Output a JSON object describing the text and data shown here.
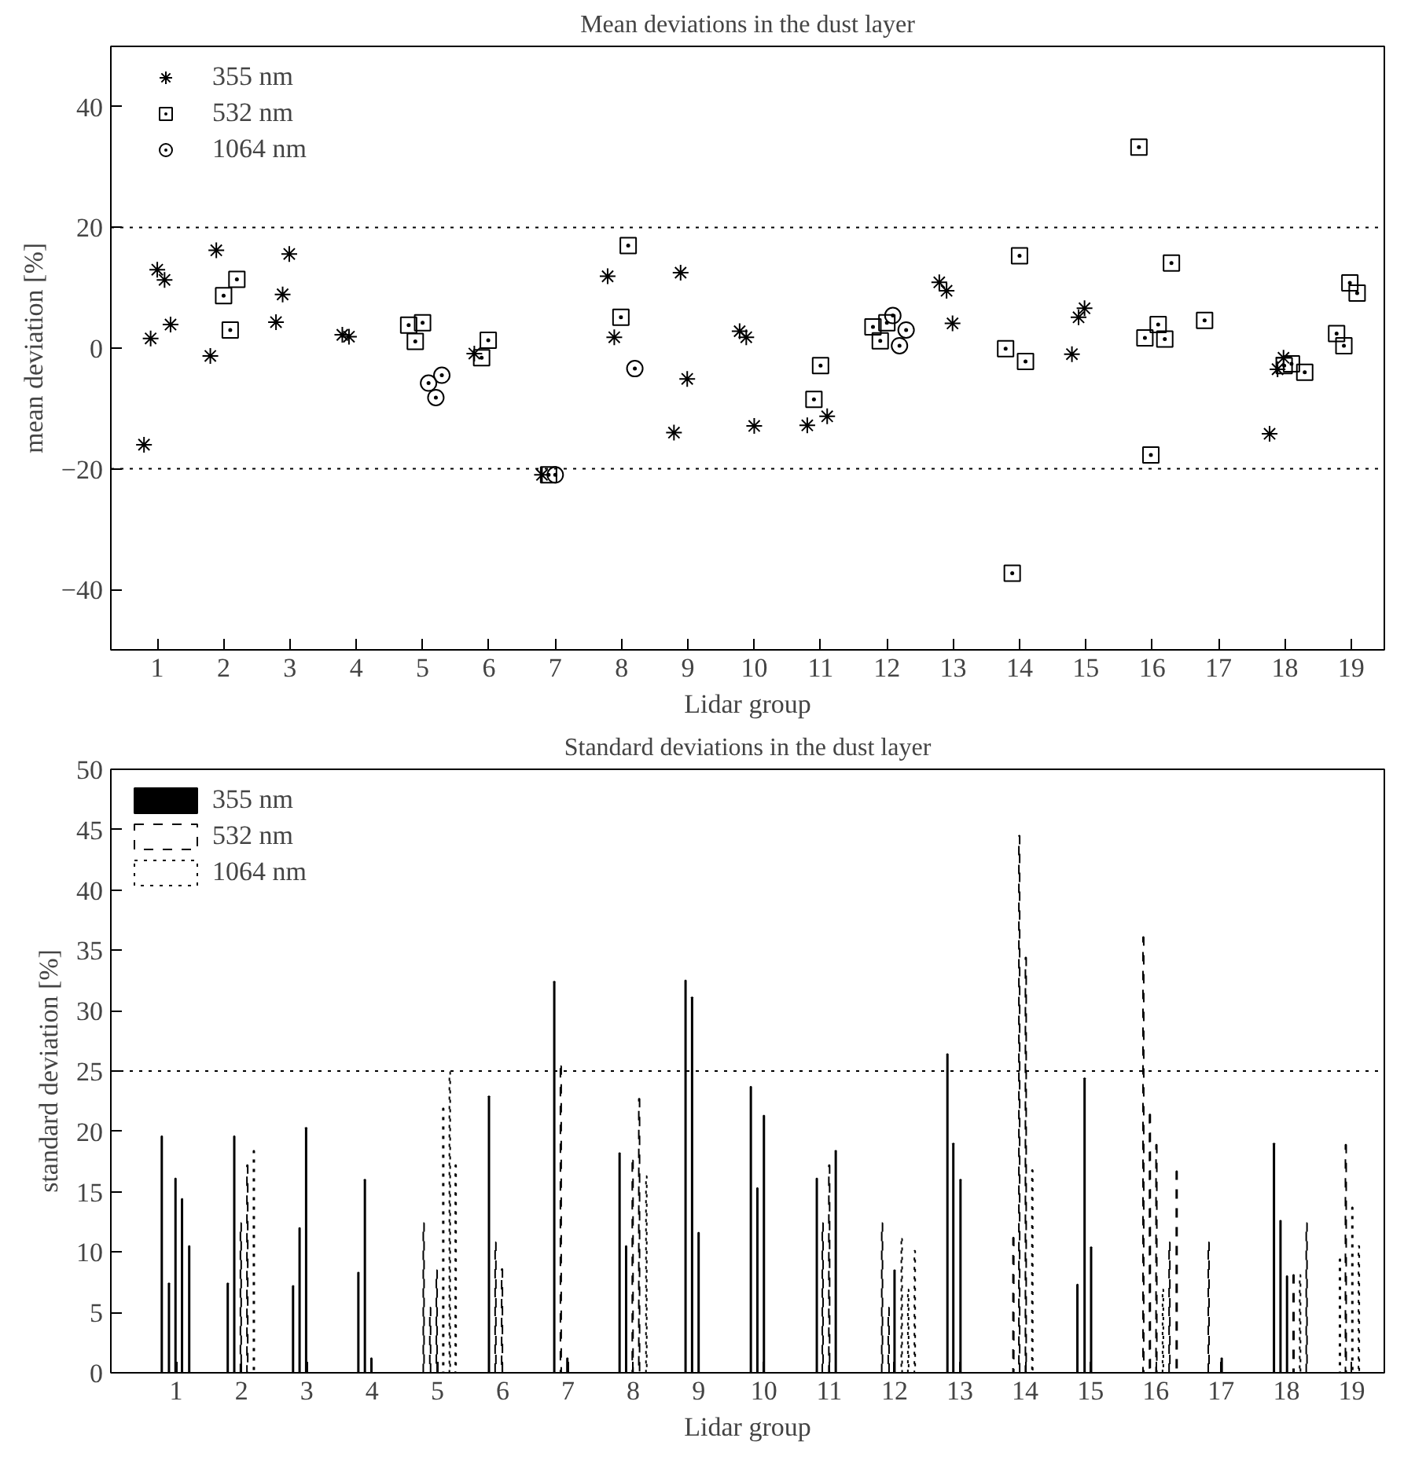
{
  "chart_data": [
    {
      "type": "scatter",
      "title": "Mean deviations in the dust layer",
      "xlabel": "Lidar group",
      "ylabel": "mean deviation [%]",
      "xlim": [
        0.3,
        19.5
      ],
      "xticks": [
        1,
        2,
        3,
        4,
        5,
        6,
        7,
        8,
        9,
        10,
        11,
        12,
        13,
        14,
        15,
        16,
        17,
        18,
        19
      ],
      "ylim": [
        -50,
        50
      ],
      "yticks": [
        -40,
        -20,
        0,
        20,
        40
      ],
      "grid": false,
      "legend": "top left",
      "ref_lines": [
        {
          "axis": "y",
          "value": 20,
          "line_style": "dotted",
          "color": "#000000"
        },
        {
          "axis": "y",
          "value": -20,
          "line_style": "dotted",
          "color": "#000000"
        }
      ],
      "series": [
        {
          "name": "355 nm",
          "color": "#000000",
          "marker": "cross",
          "x": [
            0.8,
            0.9,
            1.0,
            1.11,
            1.2,
            1.8,
            1.89,
            2.79,
            2.89,
            2.99,
            3.79,
            3.89,
            5.78,
            6.8,
            7.79,
            7.89,
            8.79,
            8.89,
            8.99,
            9.78,
            9.88,
            10.0,
            10.8,
            11.1,
            12.79,
            12.9,
            12.99,
            14.79,
            14.89,
            14.98,
            17.77,
            17.89,
            17.98
          ],
          "values": [
            -16.0,
            1.6,
            13.0,
            11.3,
            3.9,
            -1.3,
            16.2,
            4.3,
            8.9,
            15.6,
            2.2,
            1.9,
            -0.9,
            -21,
            11.9,
            1.8,
            -14.0,
            12.5,
            -5.1,
            2.8,
            1.8,
            -12.9,
            -12.8,
            -11.3,
            10.9,
            9.5,
            4.1,
            -1.0,
            5.1,
            6.6,
            -14.2,
            -3.5,
            -1.6
          ]
        },
        {
          "name": "532 nm",
          "color": "#000000",
          "marker": "square",
          "x": [
            2.0,
            2.1,
            2.2,
            4.79,
            4.89,
            5.0,
            5.89,
            5.99,
            6.9,
            7.99,
            8.1,
            10.9,
            11.0,
            11.79,
            11.9,
            12.0,
            13.79,
            13.89,
            14.0,
            14.09,
            15.8,
            15.89,
            15.98,
            16.09,
            16.19,
            16.29,
            16.79,
            17.99,
            18.1,
            18.3,
            18.78,
            18.89,
            18.98,
            19.09
          ],
          "values": [
            8.7,
            3.0,
            11.4,
            3.8,
            1.1,
            4.2,
            -1.6,
            1.3,
            -21,
            5.1,
            17.0,
            -8.5,
            -2.9,
            3.5,
            1.2,
            4.2,
            -0.1,
            -37.3,
            15.3,
            -2.2,
            33.3,
            1.7,
            -17.7,
            3.9,
            1.5,
            14.1,
            4.6,
            -2.9,
            -2.6,
            -4.0,
            2.4,
            0.4,
            10.8,
            9.1
          ]
        },
        {
          "name": "1064 nm",
          "color": "#000000",
          "marker": "circle",
          "x": [
            5.09,
            5.2,
            5.29,
            7.0,
            8.2,
            12.09,
            12.19,
            12.29
          ],
          "values": [
            -5.8,
            -8.2,
            -4.5,
            -21,
            -3.4,
            5.4,
            0.4,
            3.0
          ]
        }
      ]
    },
    {
      "type": "bar",
      "title": "Standard deviations in the dust layer",
      "xlabel": "Lidar group",
      "ylabel": "standard deviation [%]",
      "xlim": [
        0,
        19.5
      ],
      "xticks": [
        1,
        2,
        3,
        4,
        5,
        6,
        7,
        8,
        9,
        10,
        11,
        12,
        13,
        14,
        15,
        16,
        17,
        18,
        19
      ],
      "ylim": [
        0,
        50
      ],
      "yticks": [
        0,
        5,
        10,
        15,
        20,
        25,
        30,
        35,
        40,
        45,
        50
      ],
      "grid": false,
      "legend": "top left",
      "ref_lines": [
        {
          "axis": "y",
          "value": 25,
          "line_style": "dotted",
          "color": "#000000"
        }
      ],
      "series": [
        {
          "name": "355 nm",
          "color": "#000000",
          "line_style": "solid",
          "x": [
            0.78,
            0.89,
            0.99,
            1.09,
            1.2,
            1.79,
            1.89,
            2.79,
            2.89,
            2.99,
            3.79,
            3.89,
            3.99,
            5.79,
            6.79,
            6.99,
            7.79,
            7.89,
            8.8,
            8.9,
            9.0,
            9.8,
            9.9,
            10.0,
            10.81,
            11.1,
            12.0,
            12.81,
            12.9,
            13.01,
            14.8,
            14.91,
            15.01,
            17.01,
            17.81,
            17.91,
            18.01
          ],
          "values": [
            19.6,
            7.4,
            16.1,
            14.4,
            10.5,
            7.4,
            19.6,
            7.2,
            12.0,
            20.3,
            8.3,
            16.0,
            1.2,
            22.9,
            32.4,
            1.2,
            18.2,
            10.5,
            32.5,
            31.1,
            11.6,
            23.7,
            15.3,
            21.3,
            16.1,
            18.4,
            8.5,
            26.4,
            19.0,
            16.0,
            7.3,
            24.4,
            10.4,
            1.2,
            19.0,
            12.6,
            8.0
          ]
        },
        {
          "name": "532 nm",
          "color": "#000000",
          "line_style": "dashed",
          "x": [
            1.99,
            2.09,
            4.79,
            4.89,
            4.99,
            5.89,
            5.99,
            6.89,
            7.99,
            8.09,
            10.9,
            11.0,
            11.81,
            11.91,
            13.82,
            13.91,
            14.01,
            15.81,
            15.91,
            16.01,
            16.21,
            16.32,
            16.81,
            18.11,
            18.31,
            18.91
          ],
          "values": [
            12.4,
            17.2,
            12.4,
            5.4,
            8.5,
            10.8,
            8.6,
            25.4,
            17.6,
            22.7,
            12.4,
            17.2,
            12.4,
            5.4,
            11.2,
            44.5,
            34.4,
            36.1,
            21.4,
            18.9,
            10.8,
            16.7,
            10.8,
            8.1,
            12.4,
            18.9
          ]
        },
        {
          "name": "1064 nm",
          "color": "#000000",
          "line_style": "dotted",
          "x": [
            2.19,
            5.09,
            5.19,
            5.28,
            8.2,
            12.11,
            12.21,
            12.31,
            14.11,
            16.11,
            18.21,
            18.82,
            19.01,
            19.11
          ],
          "values": [
            18.4,
            21.9,
            24.9,
            17.2,
            16.3,
            11.1,
            6.9,
            10.1,
            16.8,
            6.9,
            8.1,
            9.4,
            13.7,
            10.5
          ]
        }
      ]
    }
  ]
}
